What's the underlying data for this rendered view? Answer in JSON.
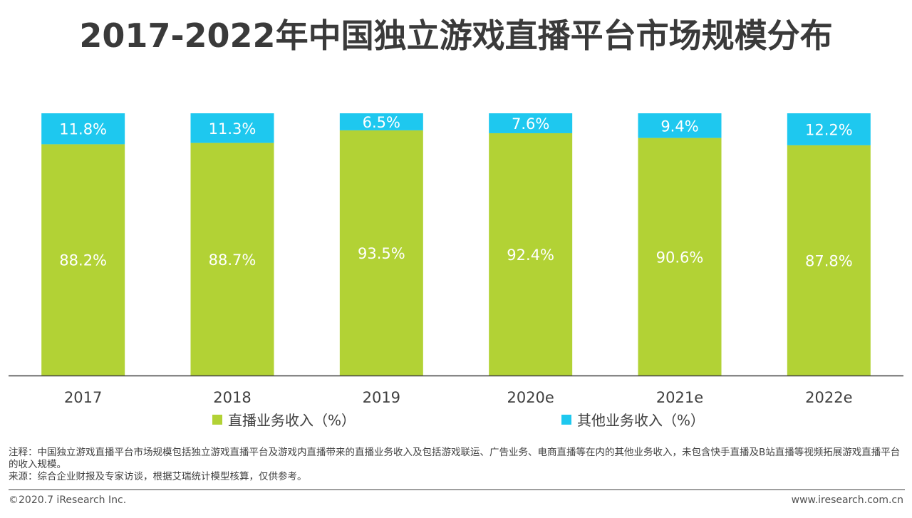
{
  "title": "2017-2022年中国独立游戏直播平台市场规模分布",
  "colors": {
    "live": "#b2d235",
    "other": "#1ec8ef",
    "axis": "#404040"
  },
  "chart_data": {
    "type": "bar",
    "stacked": true,
    "percent": true,
    "categories": [
      "2017",
      "2018",
      "2019",
      "2020e",
      "2021e",
      "2022e"
    ],
    "series": [
      {
        "name": "直播业务收入（%）",
        "values": [
          88.2,
          88.7,
          93.5,
          92.4,
          90.6,
          87.8
        ],
        "labels": [
          "88.2%",
          "88.7%",
          "93.5%",
          "92.4%",
          "90.6%",
          "87.8%"
        ]
      },
      {
        "name": "其他业务收入（%）",
        "values": [
          11.8,
          11.3,
          6.5,
          7.6,
          9.4,
          12.2
        ],
        "labels": [
          "11.8%",
          "11.3%",
          "6.5%",
          "7.6%",
          "9.4%",
          "12.2%"
        ]
      }
    ],
    "ylim": [
      0,
      100
    ]
  },
  "legend": {
    "live": "直播业务收入（%）",
    "other": "其他业务收入（%）"
  },
  "note": "注释：中国独立游戏直播平台市场规模包括独立游戏直播平台及游戏内直播带来的直播业务收入及包括游戏联运、广告业务、电商直播等在内的其他业务收入，未包含快手直播及B站直播等视频拓展游戏直播平台的收入规模。",
  "source": "来源：综合企业财报及专家访谈，根据艾瑞统计模型核算，仅供参考。",
  "footer": {
    "copyright": "©2020.7 iResearch Inc.",
    "website": "www.iresearch.com.cn"
  }
}
